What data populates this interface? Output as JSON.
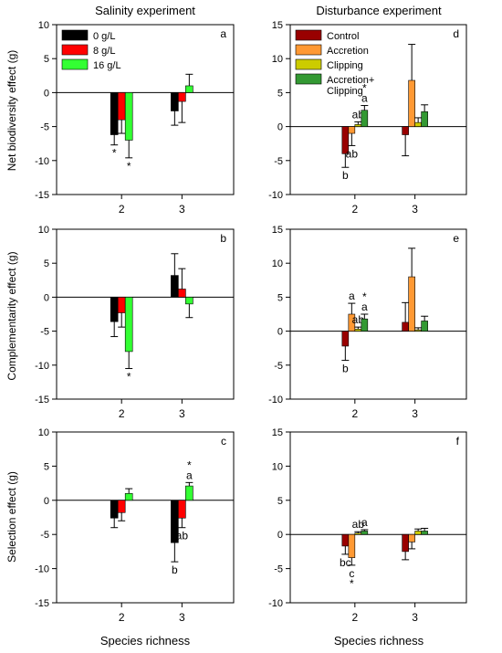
{
  "figure": {
    "col_titles": [
      "Salinity experiment",
      "Disturbance experiment"
    ],
    "xlabel": "Species richness",
    "ylabels": [
      "Net biodiversity effect (g)",
      "Complementarity effect (g)",
      "Selection effect (g)"
    ]
  },
  "chart_data": [
    {
      "type": "bar",
      "panel_label": "a",
      "categories": [
        "2",
        "3"
      ],
      "ylim": [
        -15,
        10
      ],
      "yticks": [
        -15,
        -10,
        -5,
        0,
        5,
        10
      ],
      "legend": "top-left",
      "series": [
        {
          "name": "0 g/L",
          "color": "#000000",
          "values": [
            -6.2,
            -2.7
          ],
          "errors": [
            1.5,
            2.1
          ],
          "annotations": [
            "*",
            ""
          ]
        },
        {
          "name": "8 g/L",
          "color": "#ff0000",
          "values": [
            -4.0,
            -1.3
          ],
          "errors": [
            2.0,
            3.1
          ],
          "annotations": [
            "",
            ""
          ]
        },
        {
          "name": "16 g/L",
          "color": "#33ff33",
          "values": [
            -7.0,
            1.0
          ],
          "errors": [
            2.6,
            1.7
          ],
          "annotations": [
            "*",
            ""
          ]
        }
      ]
    },
    {
      "type": "bar",
      "panel_label": "d",
      "categories": [
        "2",
        "3"
      ],
      "ylim": [
        -10,
        15
      ],
      "yticks": [
        -10,
        -5,
        0,
        5,
        10,
        15
      ],
      "legend": "top-left",
      "series": [
        {
          "name": "Control",
          "color": "#990000",
          "values": [
            -4.0,
            -1.2
          ],
          "errors": [
            2.0,
            3.1
          ],
          "annotations": [
            "b",
            ""
          ]
        },
        {
          "name": "Accretion",
          "color": "#ff9933",
          "values": [
            -1.0,
            6.8
          ],
          "errors": [
            1.8,
            5.3
          ],
          "annotations": [
            "ab",
            ""
          ]
        },
        {
          "name": "Clipping",
          "color": "#cccc00",
          "values": [
            0.3,
            0.6
          ],
          "errors": [
            0.4,
            0.7
          ],
          "annotations": [
            "ab",
            ""
          ]
        },
        {
          "name": "Accretion+ Clipping",
          "color": "#339933",
          "values": [
            2.4,
            2.2
          ],
          "errors": [
            0.7,
            1.0
          ],
          "annotations": [
            "*\na",
            ""
          ]
        }
      ]
    },
    {
      "type": "bar",
      "panel_label": "b",
      "categories": [
        "2",
        "3"
      ],
      "ylim": [
        -15,
        10
      ],
      "yticks": [
        -15,
        -10,
        -5,
        0,
        5,
        10
      ],
      "series": [
        {
          "name": "0 g/L",
          "color": "#000000",
          "values": [
            -3.6,
            3.2
          ],
          "errors": [
            2.2,
            3.2
          ],
          "annotations": [
            "",
            ""
          ]
        },
        {
          "name": "8 g/L",
          "color": "#ff0000",
          "values": [
            -2.3,
            1.2
          ],
          "errors": [
            2.1,
            3.0
          ],
          "annotations": [
            "",
            ""
          ]
        },
        {
          "name": "16 g/L",
          "color": "#33ff33",
          "values": [
            -8.0,
            -1.0
          ],
          "errors": [
            2.5,
            2.0
          ],
          "annotations": [
            "*",
            ""
          ]
        }
      ]
    },
    {
      "type": "bar",
      "panel_label": "e",
      "categories": [
        "2",
        "3"
      ],
      "ylim": [
        -10,
        15
      ],
      "yticks": [
        -10,
        -5,
        0,
        5,
        10,
        15
      ],
      "series": [
        {
          "name": "Control",
          "color": "#990000",
          "values": [
            -2.2,
            1.3
          ],
          "errors": [
            2.1,
            2.9
          ],
          "annotations": [
            "b",
            ""
          ]
        },
        {
          "name": "Accretion",
          "color": "#ff9933",
          "values": [
            2.5,
            8.0
          ],
          "errors": [
            1.6,
            4.2
          ],
          "annotations": [
            "a",
            ""
          ]
        },
        {
          "name": "Clipping",
          "color": "#cccc00",
          "values": [
            0.3,
            0.2
          ],
          "errors": [
            0.3,
            0.3
          ],
          "annotations": [
            "ab",
            ""
          ]
        },
        {
          "name": "Accretion+ Clipping",
          "color": "#339933",
          "values": [
            1.8,
            1.5
          ],
          "errors": [
            0.7,
            0.7
          ],
          "annotations": [
            "*\na",
            ""
          ]
        }
      ]
    },
    {
      "type": "bar",
      "panel_label": "c",
      "categories": [
        "2",
        "3"
      ],
      "ylim": [
        -15,
        10
      ],
      "yticks": [
        -15,
        -10,
        -5,
        0,
        5,
        10
      ],
      "series": [
        {
          "name": "0 g/L",
          "color": "#000000",
          "values": [
            -2.6,
            -6.2
          ],
          "errors": [
            1.4,
            2.8
          ],
          "annotations": [
            "",
            "b"
          ]
        },
        {
          "name": "8 g/L",
          "color": "#ff0000",
          "values": [
            -1.8,
            -2.6
          ],
          "errors": [
            1.2,
            1.4
          ],
          "annotations": [
            "",
            "ab"
          ]
        },
        {
          "name": "16 g/L",
          "color": "#33ff33",
          "values": [
            1.0,
            2.1
          ],
          "errors": [
            0.7,
            0.5
          ],
          "annotations": [
            "",
            "*\na"
          ]
        }
      ]
    },
    {
      "type": "bar",
      "panel_label": "f",
      "categories": [
        "2",
        "3"
      ],
      "ylim": [
        -10,
        15
      ],
      "yticks": [
        -10,
        -5,
        0,
        5,
        10,
        15
      ],
      "series": [
        {
          "name": "Control",
          "color": "#990000",
          "values": [
            -1.7,
            -2.5
          ],
          "errors": [
            1.2,
            1.2
          ],
          "annotations": [
            "bc",
            ""
          ]
        },
        {
          "name": "Accretion",
          "color": "#ff9933",
          "values": [
            -3.4,
            -1.1
          ],
          "errors": [
            1.1,
            1.0
          ],
          "annotations": [
            "c\n*",
            ""
          ]
        },
        {
          "name": "Clipping",
          "color": "#cccc00",
          "values": [
            0.2,
            0.5
          ],
          "errors": [
            0.2,
            0.3
          ],
          "annotations": [
            "ab",
            ""
          ]
        },
        {
          "name": "Accretion+ Clipping",
          "color": "#339933",
          "values": [
            0.5,
            0.5
          ],
          "errors": [
            0.2,
            0.4
          ],
          "annotations": [
            "a",
            ""
          ]
        }
      ]
    }
  ]
}
